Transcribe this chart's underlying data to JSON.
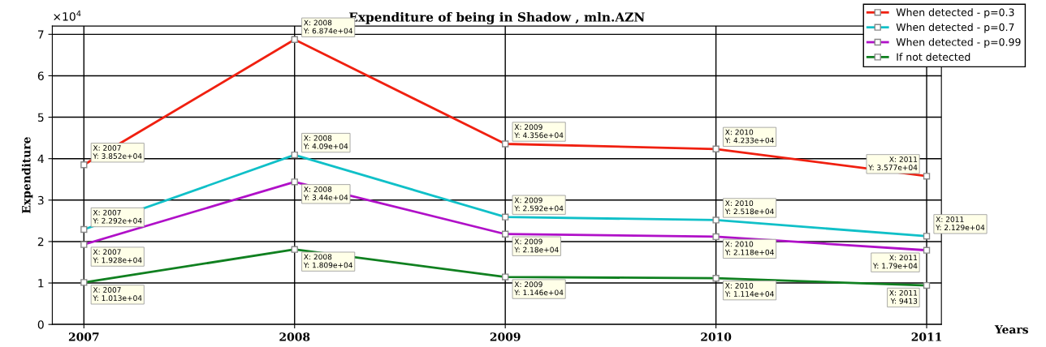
{
  "chart_data": {
    "type": "line",
    "title": "Expenditure of being in Shadow , mln.AZN",
    "xlabel": "Years",
    "ylabel": "Expenditure",
    "x": [
      2007,
      2008,
      2009,
      2010,
      2011
    ],
    "series": [
      {
        "name": "When detected - p=0.3",
        "color": "#f02010",
        "values": [
          3.852,
          6.874,
          4.356,
          4.233,
          3.577
        ]
      },
      {
        "name": "When detected - p=0.7",
        "color": "#10c0c8",
        "values": [
          2.292,
          4.09,
          2.592,
          2.518,
          2.129
        ]
      },
      {
        "name": "When detected - p=0.99",
        "color": "#b010c8",
        "values": [
          1.928,
          3.44,
          2.18,
          2.118,
          1.79
        ]
      },
      {
        "name": "If not detected",
        "color": "#108020",
        "values": [
          1.013,
          1.809,
          1.146,
          1.114,
          0.9413
        ]
      }
    ],
    "xlim": [
      2006.85,
      2011.07
    ],
    "xticks": [
      2007,
      2008,
      2009,
      2010,
      2011
    ],
    "ylim": [
      0,
      7.2
    ],
    "yticks": [
      0,
      1,
      2,
      3,
      4,
      5,
      6,
      7
    ],
    "grid": true,
    "legend": "top right",
    "marker": "square",
    "line_style": "solid",
    "annotations": [
      "×10$^{4}$",
      {
        "text": "X: 2007\nY: 3.852e+04",
        "x": 2007,
        "y": 3.852
      },
      {
        "text": "X: 2008\nY: 6.874e+04",
        "x": 2008,
        "y": 6.874
      },
      {
        "text": "X: 2009\nY: 4.356e+04",
        "x": 2009,
        "y": 4.356
      },
      {
        "text": "X: 2010\nY: 4.233e+04",
        "x": 2010,
        "y": 4.233
      },
      {
        "text": "X: 2011\nY: 3.577e+04",
        "x": 2011,
        "y": 3.577
      },
      {
        "text": "X: 2007\nY: 2.292e+04",
        "x": 2007,
        "y": 2.292
      },
      {
        "text": "X: 2008\nY: 4.09e+04",
        "x": 2008,
        "y": 4.09
      },
      {
        "text": "X: 2009\nY: 2.592e+04",
        "x": 2009,
        "y": 2.592
      },
      {
        "text": "X: 2010\nY: 2.518e+04",
        "x": 2010,
        "y": 2.518
      },
      {
        "text": "X: 2011\nY: 2.129e+04",
        "x": 2011,
        "y": 2.129
      },
      {
        "text": "X: 2007\nY: 1.928e+04",
        "x": 2007,
        "y": 1.928
      },
      {
        "text": "X: 2008\nY: 3.44e+04",
        "x": 2008,
        "y": 3.44
      },
      {
        "text": "X: 2009\nY: 2.18e+04",
        "x": 2009,
        "y": 2.18
      },
      {
        "text": "X: 2010\nY: 2.118e+04",
        "x": 2010,
        "y": 2.118
      },
      {
        "text": "X: 2011\nY: 1.79e+04",
        "x": 2011,
        "y": 1.79
      },
      {
        "text": "X: 2007\nY: 1.013e+04",
        "x": 2007,
        "y": 1.013
      },
      {
        "text": "X: 2008\nY: 1.809e+04",
        "x": 2008,
        "y": 1.809
      },
      {
        "text": "X: 2009\nY: 1.146e+04",
        "x": 2009,
        "y": 1.146
      },
      {
        "text": "X: 2010\nY: 1.114e+04",
        "x": 2010,
        "y": 1.114
      },
      {
        "text": "X: 2011\nY: 9413",
        "x": 2011,
        "y": 0.9413
      }
    ]
  }
}
